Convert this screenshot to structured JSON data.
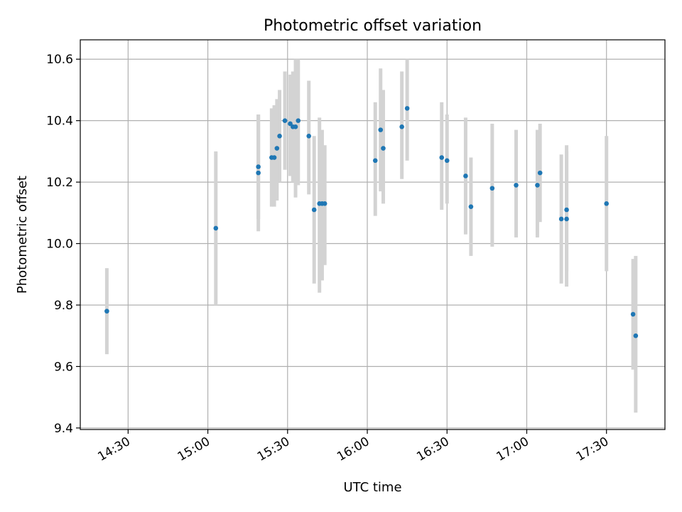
{
  "chart_data": {
    "type": "scatter",
    "title": "Photometric offset variation",
    "xlabel": "UTC time",
    "ylabel": "Photometric offset",
    "x_unit": "UTC time (HH:MM)",
    "xlim": [
      "14:12",
      "17:52"
    ],
    "ylim": [
      9.395,
      10.663
    ],
    "x_ticks": [
      "14:30",
      "15:00",
      "15:30",
      "16:00",
      "16:30",
      "17:00",
      "17:30"
    ],
    "y_ticks": [
      9.4,
      9.6,
      9.8,
      10.0,
      10.2,
      10.4,
      10.6
    ],
    "y_tick_labels": [
      "9.4",
      "9.6",
      "9.8",
      "10.0",
      "10.2",
      "10.4",
      "10.6"
    ],
    "grid": true,
    "legend": "none",
    "colors": {
      "point": "#1f77b4",
      "errorbar": "#d3d3d3",
      "grid": "#b0b0b0",
      "axes": "#000000"
    },
    "series": [
      {
        "points": [
          {
            "x": "14:22",
            "y": 9.78,
            "ylow": 9.64,
            "yhigh": 9.92
          },
          {
            "x": "15:03",
            "y": 10.05,
            "ylow": 9.8,
            "yhigh": 10.3
          },
          {
            "x": "15:19",
            "y": 10.25,
            "ylow": 10.08,
            "yhigh": 10.42
          },
          {
            "x": "15:19",
            "y": 10.23,
            "ylow": 10.04,
            "yhigh": 10.42
          },
          {
            "x": "15:24",
            "y": 10.28,
            "ylow": 10.12,
            "yhigh": 10.44
          },
          {
            "x": "15:25",
            "y": 10.28,
            "ylow": 10.12,
            "yhigh": 10.45
          },
          {
            "x": "15:26",
            "y": 10.31,
            "ylow": 10.14,
            "yhigh": 10.47
          },
          {
            "x": "15:27",
            "y": 10.35,
            "ylow": 10.2,
            "yhigh": 10.5
          },
          {
            "x": "15:29",
            "y": 10.4,
            "ylow": 10.24,
            "yhigh": 10.56
          },
          {
            "x": "15:31",
            "y": 10.39,
            "ylow": 10.22,
            "yhigh": 10.55
          },
          {
            "x": "15:32",
            "y": 10.38,
            "ylow": 10.2,
            "yhigh": 10.56
          },
          {
            "x": "15:33",
            "y": 10.38,
            "ylow": 10.15,
            "yhigh": 10.6
          },
          {
            "x": "15:34",
            "y": 10.4,
            "ylow": 10.19,
            "yhigh": 10.6
          },
          {
            "x": "15:38",
            "y": 10.35,
            "ylow": 10.16,
            "yhigh": 10.53
          },
          {
            "x": "15:40",
            "y": 10.11,
            "ylow": 9.87,
            "yhigh": 10.35
          },
          {
            "x": "15:42",
            "y": 10.13,
            "ylow": 9.84,
            "yhigh": 10.41
          },
          {
            "x": "15:43",
            "y": 10.13,
            "ylow": 9.88,
            "yhigh": 10.37
          },
          {
            "x": "15:44",
            "y": 10.13,
            "ylow": 9.93,
            "yhigh": 10.32
          },
          {
            "x": "16:03",
            "y": 10.27,
            "ylow": 10.09,
            "yhigh": 10.46
          },
          {
            "x": "16:05",
            "y": 10.37,
            "ylow": 10.17,
            "yhigh": 10.57
          },
          {
            "x": "16:06",
            "y": 10.31,
            "ylow": 10.13,
            "yhigh": 10.5
          },
          {
            "x": "16:13",
            "y": 10.38,
            "ylow": 10.21,
            "yhigh": 10.56
          },
          {
            "x": "16:15",
            "y": 10.44,
            "ylow": 10.27,
            "yhigh": 10.6
          },
          {
            "x": "16:28",
            "y": 10.28,
            "ylow": 10.11,
            "yhigh": 10.46
          },
          {
            "x": "16:30",
            "y": 10.27,
            "ylow": 10.13,
            "yhigh": 10.42
          },
          {
            "x": "16:37",
            "y": 10.22,
            "ylow": 10.03,
            "yhigh": 10.41
          },
          {
            "x": "16:39",
            "y": 10.12,
            "ylow": 9.96,
            "yhigh": 10.28
          },
          {
            "x": "16:47",
            "y": 10.18,
            "ylow": 9.99,
            "yhigh": 10.39
          },
          {
            "x": "16:56",
            "y": 10.19,
            "ylow": 10.02,
            "yhigh": 10.37
          },
          {
            "x": "17:04",
            "y": 10.19,
            "ylow": 10.02,
            "yhigh": 10.37
          },
          {
            "x": "17:05",
            "y": 10.23,
            "ylow": 10.07,
            "yhigh": 10.39
          },
          {
            "x": "17:13",
            "y": 10.08,
            "ylow": 9.87,
            "yhigh": 10.29
          },
          {
            "x": "17:15",
            "y": 10.11,
            "ylow": 9.91,
            "yhigh": 10.32
          },
          {
            "x": "17:15",
            "y": 10.08,
            "ylow": 9.86,
            "yhigh": 10.3
          },
          {
            "x": "17:30",
            "y": 10.13,
            "ylow": 9.91,
            "yhigh": 10.35
          },
          {
            "x": "17:40",
            "y": 9.77,
            "ylow": 9.59,
            "yhigh": 9.95
          },
          {
            "x": "17:41",
            "y": 9.7,
            "ylow": 9.45,
            "yhigh": 9.96
          }
        ]
      }
    ]
  }
}
